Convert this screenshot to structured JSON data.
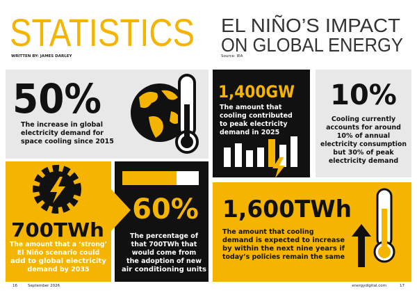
{
  "header": {
    "title": "STATISTICS",
    "byline": "WRITTEN BY: JAMES DARLEY",
    "headline": [
      "EL NIÑO’S IMPACT",
      "ON GLOBAL ENERGY"
    ],
    "source": "Source: IEA"
  },
  "stats": [
    {
      "figure": "50%",
      "text": [
        "The increase in global",
        "electricity demand for",
        "space cooling since 2015"
      ]
    },
    {
      "figure": "1,400GW",
      "text": [
        "The amount that",
        "cooling contributed",
        "to peak electricity",
        "demand in 2025"
      ]
    },
    {
      "figure": "10%",
      "text": [
        "Cooling currently",
        "accounts for around",
        "10% of annual",
        "electricity consumption",
        "but 30% of peak",
        "electricity demand"
      ]
    },
    {
      "figure": "700TWh",
      "text": [
        "The amount that a ‘strong’",
        "El Niño scenario could",
        "add to global electricity",
        "demand by 2035"
      ]
    },
    {
      "figure": "60%",
      "text": [
        "The percentage of",
        "that 700TWh that",
        "would come from",
        "the adoption of new",
        "air conditioning units"
      ]
    },
    {
      "figure": "1,600TWh",
      "text": [
        "The amount that cooling",
        "demand is expected to increase",
        "by within the next nine years if",
        "today’s policies remain the same"
      ]
    }
  ],
  "footer": {
    "left_page": "16",
    "date": "September 2026",
    "site": "energydigital.com",
    "right_page": "17"
  }
}
